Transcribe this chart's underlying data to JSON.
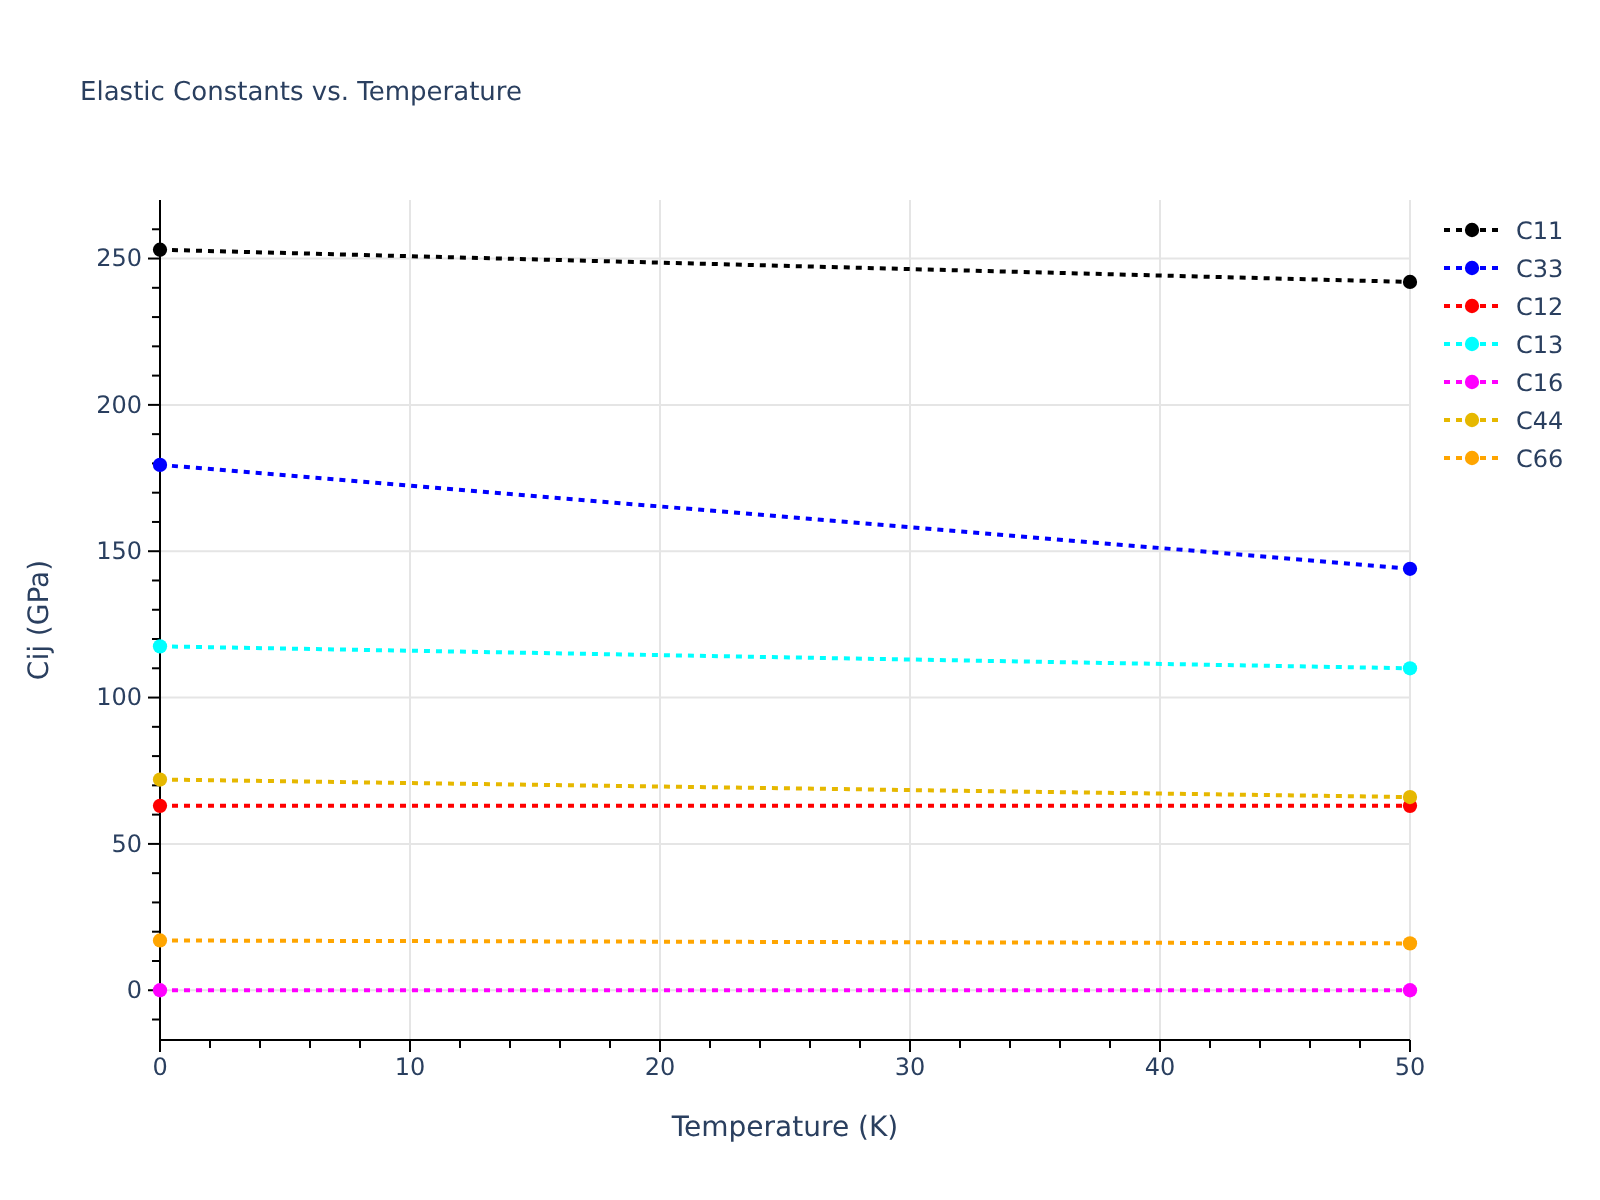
{
  "chart_data": {
    "type": "line",
    "title": "Elastic Constants vs. Temperature",
    "xlabel": "Temperature (K)",
    "ylabel": "Cij (GPa)",
    "x": [
      0,
      50
    ],
    "series": [
      {
        "name": "C11",
        "color": "#000000",
        "values": [
          253,
          242
        ]
      },
      {
        "name": "C33",
        "color": "#0000ff",
        "values": [
          179.5,
          144
        ]
      },
      {
        "name": "C12",
        "color": "#ff0000",
        "values": [
          63,
          63
        ]
      },
      {
        "name": "C13",
        "color": "#00ffff",
        "values": [
          117.5,
          110
        ]
      },
      {
        "name": "C16",
        "color": "#ff00ff",
        "values": [
          0,
          0
        ]
      },
      {
        "name": "C44",
        "color": "#e6b800",
        "values": [
          72,
          66
        ]
      },
      {
        "name": "C66",
        "color": "#ffa500",
        "values": [
          17,
          16
        ]
      }
    ],
    "xlim": [
      0,
      50
    ],
    "ylim": [
      -17,
      270
    ],
    "xticks": [
      0,
      {
        "value": 2,
        "label": null
      },
      {
        "value": 4,
        "label": null
      },
      {
        "value": 6,
        "label": null
      },
      {
        "value": 8,
        "label": null
      },
      10,
      {
        "value": 12,
        "label": null
      },
      {
        "value": 14,
        "label": null
      },
      {
        "value": 16,
        "label": null
      },
      {
        "value": 18,
        "label": null
      },
      20,
      {
        "value": 22,
        "label": null
      },
      {
        "value": 24,
        "label": null
      },
      {
        "value": 26,
        "label": null
      },
      {
        "value": 28,
        "label": null
      },
      30,
      {
        "value": 32,
        "label": null
      },
      {
        "value": 34,
        "label": null
      },
      {
        "value": 36,
        "label": null
      },
      {
        "value": 38,
        "label": null
      },
      40,
      {
        "value": 42,
        "label": null
      },
      {
        "value": 44,
        "label": null
      },
      {
        "value": 46,
        "label": null
      },
      {
        "value": 48,
        "label": null
      },
      50
    ],
    "yticks": [
      {
        "value": -10,
        "label": null
      },
      0,
      {
        "value": 10,
        "label": null
      },
      {
        "value": 20,
        "label": null
      },
      {
        "value": 30,
        "label": null
      },
      {
        "value": 40,
        "label": null
      },
      50,
      {
        "value": 60,
        "label": null
      },
      {
        "value": 70,
        "label": null
      },
      {
        "value": 80,
        "label": null
      },
      {
        "value": 90,
        "label": null
      },
      100,
      {
        "value": 110,
        "label": null
      },
      {
        "value": 120,
        "label": null
      },
      {
        "value": 130,
        "label": null
      },
      {
        "value": 140,
        "label": null
      },
      150,
      {
        "value": 160,
        "label": null
      },
      {
        "value": 170,
        "label": null
      },
      {
        "value": 180,
        "label": null
      },
      {
        "value": 190,
        "label": null
      },
      200,
      {
        "value": 210,
        "label": null
      },
      {
        "value": 220,
        "label": null
      },
      {
        "value": 230,
        "label": null
      },
      {
        "value": 240,
        "label": null
      },
      250,
      {
        "value": 260,
        "label": null
      }
    ],
    "grid": true,
    "legend": "top right",
    "marker": "circle",
    "line_style": "dotted"
  }
}
